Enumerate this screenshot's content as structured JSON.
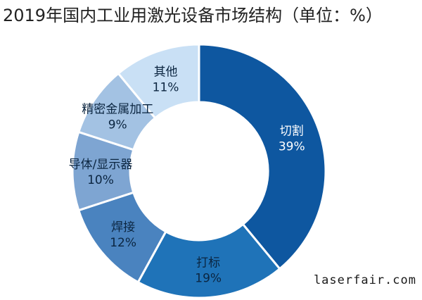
{
  "title": "2019年国内工业用激光设备市场结构（单位：%）",
  "watermark": "laserfair.com",
  "chart_data": {
    "type": "pie",
    "title": "2019年国内工业用激光设备市场结构（单位：%）",
    "unit": "%",
    "slices": [
      {
        "label": "切割",
        "value": 39,
        "value_text": "39%",
        "color": "#0e57a0",
        "text_color": "#ffffff"
      },
      {
        "label": "打标",
        "value": 19,
        "value_text": "19%",
        "color": "#1f73b8",
        "text_color": "#0b2540"
      },
      {
        "label": "焊接",
        "value": 12,
        "value_text": "12%",
        "color": "#4a83bf",
        "text_color": "#0b2540"
      },
      {
        "label": "导体/显示器",
        "value": 10,
        "value_text": "10%",
        "color": "#7ea5d2",
        "text_color": "#0b2540"
      },
      {
        "label": "精密金属加工",
        "value": 9,
        "value_text": "9%",
        "color": "#a3c2e3",
        "text_color": "#0b2540"
      },
      {
        "label": "其他",
        "value": 11,
        "value_text": "11%",
        "color": "#c9e0f5",
        "text_color": "#0b2540"
      }
    ],
    "donut": true,
    "start": "12 o'clock",
    "direction": "clockwise"
  }
}
